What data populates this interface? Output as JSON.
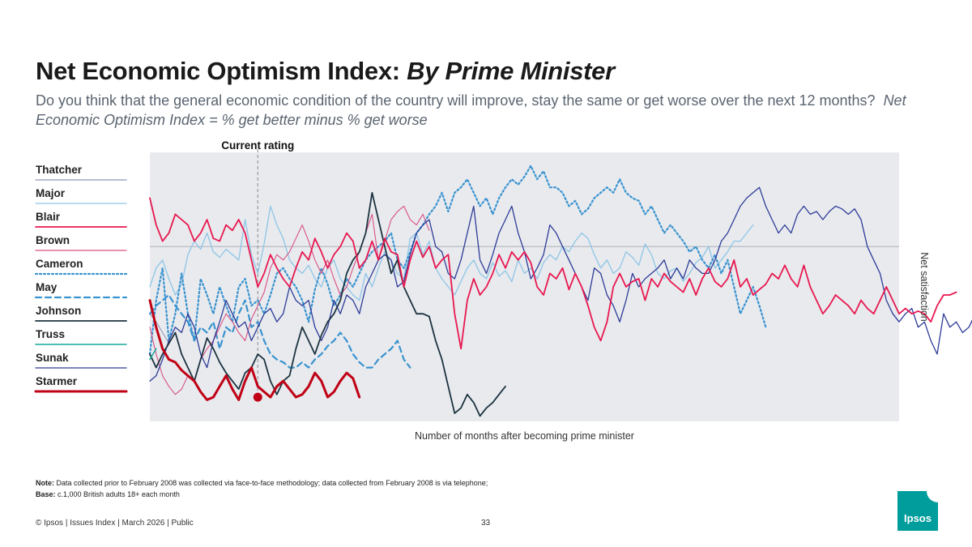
{
  "header": {
    "title_main": "Net Economic Optimism Index: ",
    "title_italic": "By Prime Minister",
    "subtitle_main": "Do you think that the general economic condition of the country will improve, stay the same or get worse over the next 12 months?",
    "subtitle_italic": "Net Economic Optimism Index = % get better minus % get worse"
  },
  "colors": {
    "plot_bg": "#e8eaee",
    "zero_line": "#aab0b8",
    "current_line": "#9a9a9a"
  },
  "chart_data": {
    "type": "line",
    "xlabel": "Number of months after becoming prime minister",
    "ylabel": "Net satisfaction",
    "xlim": [
      0,
      118
    ],
    "ylim": [
      -65,
      35
    ],
    "zero_line": 0,
    "current_rating": {
      "label": "Current rating",
      "x": 17,
      "value": -56
    },
    "series": [
      {
        "name": "Thatcher",
        "color": "#8e93b8",
        "width": 1,
        "dash": "",
        "x0": 0,
        "values": [
          -25,
          -28,
          -32,
          -36
        ]
      },
      {
        "name": "Major",
        "color": "#8ec5e6",
        "width": 1.3,
        "dash": "",
        "x0": 0,
        "values": [
          -15,
          -8,
          -5,
          -12,
          -18,
          -14,
          -3,
          2,
          -1,
          5,
          -2,
          -4,
          -1,
          -3,
          -5,
          10,
          -3,
          -10,
          1,
          15,
          8,
          3,
          -5,
          -8,
          -10,
          -7,
          -12,
          -15,
          -8,
          -5,
          -12,
          -15,
          -18,
          -20,
          -10,
          -15,
          -8,
          -2,
          -5,
          -10,
          -12,
          3,
          5,
          -3,
          2,
          -8,
          -12,
          -15,
          -18,
          -13,
          -8,
          -5,
          -10,
          -12,
          -6,
          -11,
          -9,
          -13,
          -5,
          -10,
          -8,
          -12,
          -6,
          -3,
          -5,
          0,
          -2,
          2,
          5,
          3,
          -3,
          -8,
          -5,
          -10,
          -8,
          -2,
          -4,
          -7,
          1,
          -3,
          -10,
          -12,
          -9,
          -8,
          -13,
          -10,
          -6,
          -4,
          0,
          -8,
          -5,
          -2,
          2,
          2,
          5,
          8
        ]
      },
      {
        "name": "Blair",
        "color": "#e8174f",
        "width": 1.8,
        "dash": "",
        "x0": 0,
        "values": [
          18,
          8,
          2,
          5,
          12,
          10,
          8,
          2,
          5,
          10,
          3,
          2,
          8,
          6,
          10,
          5,
          -5,
          -15,
          -10,
          -3,
          -8,
          -12,
          -15,
          -8,
          -2,
          -5,
          3,
          -2,
          -8,
          -3,
          0,
          5,
          2,
          -8,
          -5,
          2,
          -5,
          3,
          -2,
          -3,
          -15,
          -5,
          2,
          -4,
          0,
          -8,
          -5,
          -3,
          -25,
          -38,
          -20,
          -12,
          -18,
          -15,
          -10,
          -3,
          -8,
          -2,
          -5,
          -2,
          -6,
          -15,
          -18,
          -10,
          -12,
          -8,
          -16,
          -10,
          -15,
          -22,
          -30,
          -35,
          -28,
          -15,
          -10,
          -15,
          -13,
          -12,
          -20,
          -12,
          -15,
          -10,
          -13,
          -15,
          -17,
          -12,
          -18,
          -12,
          -8,
          -13,
          -15,
          -12,
          -5,
          -15,
          -12,
          -18,
          -16,
          -14,
          -10,
          -12,
          -7,
          -12,
          -15,
          -7,
          -15,
          -20,
          -25,
          -22,
          -18,
          -20,
          -22,
          -25,
          -20,
          -23,
          -25,
          -20,
          -15,
          -20,
          -25,
          -23,
          -25,
          -24,
          -25,
          -28,
          -22,
          -18,
          -18,
          -17
        ]
      },
      {
        "name": "Brown",
        "color": "#d94f84",
        "width": 1.1,
        "dash": "",
        "x0": 0,
        "values": [
          -30,
          -40,
          -48,
          -52,
          -55,
          -53,
          -48,
          -50,
          -42,
          -38,
          -35,
          -30,
          -25,
          -28,
          -32,
          -35,
          -27,
          -22,
          -17,
          -8,
          -3,
          -5,
          -2,
          3,
          8,
          2,
          -5,
          -10,
          -5,
          -12,
          -18,
          -15,
          -8,
          -2,
          5,
          12,
          -5,
          2,
          10,
          13,
          15,
          10,
          8,
          12,
          6
        ]
      },
      {
        "name": "Cameron",
        "color": "#3a93cf",
        "width": 2.2,
        "dash": "2,3",
        "x0": 0,
        "values": [
          -40,
          -20,
          -8,
          -35,
          -25,
          -10,
          -25,
          -35,
          -12,
          -18,
          -25,
          -15,
          -22,
          -28,
          -15,
          -12,
          -22,
          -20,
          -25,
          -18,
          -10,
          -8,
          -12,
          -15,
          -20,
          -28,
          -16,
          -8,
          -14,
          -22,
          -18,
          -12,
          -15,
          -10,
          -5,
          -2,
          0,
          2,
          5,
          -5,
          -8,
          -2,
          5,
          8,
          12,
          15,
          20,
          13,
          20,
          22,
          25,
          20,
          15,
          18,
          12,
          18,
          22,
          25,
          23,
          26,
          30,
          25,
          28,
          22,
          22,
          20,
          15,
          17,
          12,
          14,
          18,
          20,
          22,
          20,
          25,
          20,
          18,
          17,
          12,
          15,
          10,
          5,
          8,
          5,
          2,
          -2,
          0,
          -5,
          -8,
          -3,
          -10,
          -5,
          -15,
          -25,
          -20,
          -15,
          -22,
          -30
        ]
      },
      {
        "name": "May",
        "color": "#3a93cf",
        "width": 2.2,
        "dash": "7,5",
        "x0": 0,
        "values": [
          -25,
          -22,
          -20,
          -18,
          -22,
          -25,
          -28,
          -35,
          -30,
          -32,
          -28,
          -38,
          -30,
          -32,
          -25,
          -20,
          -30,
          -28,
          -35,
          -40,
          -42,
          -43,
          -45,
          -45,
          -43,
          -45,
          -42,
          -40,
          -37,
          -35,
          -32,
          -35,
          -40,
          -43,
          -45,
          -45,
          -42,
          -40,
          -38,
          -35,
          -42,
          -45
        ]
      },
      {
        "name": "Johnson",
        "color": "#1c3340",
        "width": 1.8,
        "dash": "",
        "x0": 0,
        "values": [
          -40,
          -45,
          -40,
          -36,
          -32,
          -40,
          -45,
          -50,
          -42,
          -34,
          -38,
          -43,
          -47,
          -50,
          -53,
          -47,
          -45,
          -40,
          -42,
          -50,
          -55,
          -50,
          -48,
          -38,
          -30,
          -35,
          -40,
          -33,
          -28,
          -25,
          -20,
          -10,
          -5,
          -2,
          5,
          20,
          10,
          0,
          -10,
          -5,
          -15,
          -20,
          -25,
          -25,
          -26,
          -35,
          -42,
          -52,
          -62,
          -60,
          -55,
          -58,
          -63,
          -60,
          -58,
          -55,
          -52
        ]
      },
      {
        "name": "Truss",
        "color": "#15a89a",
        "width": 1.5,
        "dash": "",
        "x0": 0,
        "values": [
          -42,
          -38
        ]
      },
      {
        "name": "Sunak",
        "color": "#2e3b97",
        "width": 1.3,
        "dash": "",
        "x0": 0,
        "values": [
          -50,
          -48,
          -42,
          -35,
          -30,
          -32,
          -25,
          -30,
          -40,
          -45,
          -35,
          -28,
          -20,
          -25,
          -30,
          -28,
          -35,
          -30,
          -25,
          -23,
          -28,
          -25,
          -15,
          -20,
          -22,
          -20,
          -30,
          -35,
          -30,
          -20,
          -25,
          -18,
          -20,
          -25,
          -15,
          -10,
          -5,
          -3,
          -5,
          -15,
          -13,
          -3,
          5,
          8,
          10,
          0,
          -2,
          -10,
          -12,
          -5,
          5,
          15,
          -5,
          -10,
          -3,
          5,
          10,
          15,
          5,
          -2,
          -12,
          -8,
          -3,
          8,
          5,
          0,
          -5,
          -10,
          -15,
          -20,
          -8,
          -10,
          -18,
          -22,
          -28,
          -20,
          -10,
          -15,
          -12,
          -10,
          -8,
          -5,
          -12,
          -8,
          -12,
          -5,
          -8,
          -10,
          -10,
          -5,
          2,
          5,
          10,
          15,
          18,
          20,
          22,
          15,
          10,
          5,
          8,
          5,
          12,
          15,
          12,
          13,
          10,
          13,
          15,
          14,
          12,
          14,
          10,
          0,
          -5,
          -10,
          -20,
          -25,
          -28,
          -25,
          -23,
          -30,
          -28,
          -35,
          -40,
          -25,
          -30,
          -28,
          -32,
          -30,
          -25,
          -20,
          -23,
          -30,
          -25,
          -22,
          -20,
          -23,
          -30,
          -25,
          -32,
          -28,
          -25,
          -35,
          -40,
          -45,
          -40,
          -38,
          -30,
          -35,
          -32,
          -25,
          -40,
          -45,
          -40,
          -35,
          -28,
          -25,
          -30,
          -33
        ]
      },
      {
        "name": "Starmer",
        "color": "#c00014",
        "width": 3,
        "dash": "",
        "x0": 0,
        "values": [
          -20,
          -30,
          -38,
          -42,
          -43,
          -46,
          -48,
          -50,
          -54,
          -57,
          -56,
          -52,
          -48,
          -53,
          -57,
          -50,
          -45,
          -52,
          -54,
          -56,
          -52,
          -50,
          -53,
          -56,
          -55,
          -52,
          -47,
          -50,
          -56,
          -54,
          -50,
          -47,
          -49,
          -56
        ]
      }
    ]
  },
  "legend": [
    {
      "name": "Thatcher"
    },
    {
      "name": "Major"
    },
    {
      "name": "Blair"
    },
    {
      "name": "Brown"
    },
    {
      "name": "Cameron"
    },
    {
      "name": "May"
    },
    {
      "name": "Johnson"
    },
    {
      "name": "Truss"
    },
    {
      "name": "Sunak"
    },
    {
      "name": "Starmer"
    }
  ],
  "notes": {
    "note_label": "Note:",
    "note_text": "Data collected prior to February 2008 was collected via face-to-face methodology; data collected from February 2008 is via telephone;",
    "base_label": "Base:",
    "base_text": "c.1,000 British adults 18+ each month"
  },
  "footer": {
    "text": "© Ipsos | Issues Index | March 2026 | Public",
    "page": "33",
    "logo": "Ipsos"
  }
}
